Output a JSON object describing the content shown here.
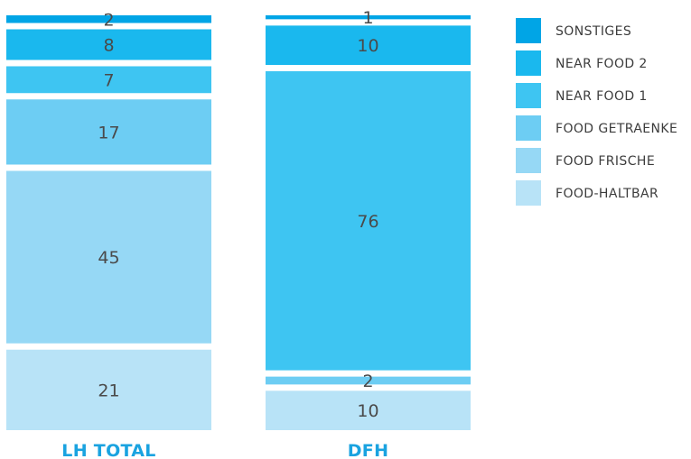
{
  "chart_data": {
    "type": "bar",
    "stacked": true,
    "normalized_percent": true,
    "categories": [
      "LH TOTAL",
      "DFH"
    ],
    "series": [
      {
        "name": "FOOD-HALTBAR",
        "color": "#b8e3f7",
        "values": [
          21,
          10
        ]
      },
      {
        "name": "FOOD FRISCHE",
        "color": "#96d8f5",
        "values": [
          45,
          0
        ]
      },
      {
        "name": "FOOD GETRAENKE",
        "color": "#6dcdf3",
        "values": [
          17,
          2
        ]
      },
      {
        "name": "NEAR FOOD 1",
        "color": "#3ec5f2",
        "values": [
          7,
          76
        ]
      },
      {
        "name": "NEAR FOOD 2",
        "color": "#1ab8ee",
        "values": [
          8,
          10
        ]
      },
      {
        "name": "SONSTIGES",
        "color": "#00a5e6",
        "values": [
          2,
          1
        ]
      }
    ],
    "legend_position": "right",
    "legend_order": [
      "SONSTIGES",
      "NEAR FOOD 2",
      "NEAR FOOD 1",
      "FOOD GETRAENKE",
      "FOOD FRISCHE",
      "FOOD-HALTBAR"
    ]
  }
}
